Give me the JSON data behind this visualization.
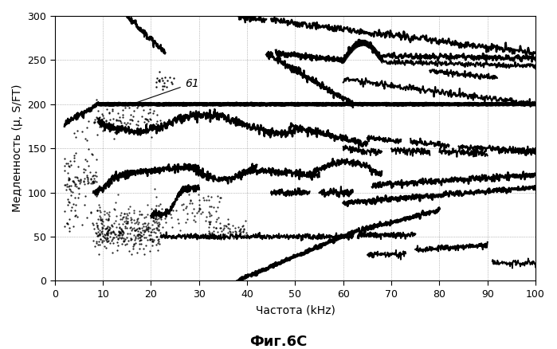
{
  "title": "Фиг.6С",
  "xlabel": "Частота (kHz)",
  "ylabel": "Медленность (μ, S/FT)",
  "xlim": [
    0,
    100
  ],
  "ylim": [
    0,
    300
  ],
  "xticks": [
    0,
    10,
    20,
    30,
    40,
    50,
    60,
    70,
    80,
    90,
    100
  ],
  "yticks": [
    0,
    50,
    100,
    150,
    200,
    250,
    300
  ],
  "bg_color": "#ffffff",
  "line_color": "#000000",
  "grid_color": "#888888"
}
